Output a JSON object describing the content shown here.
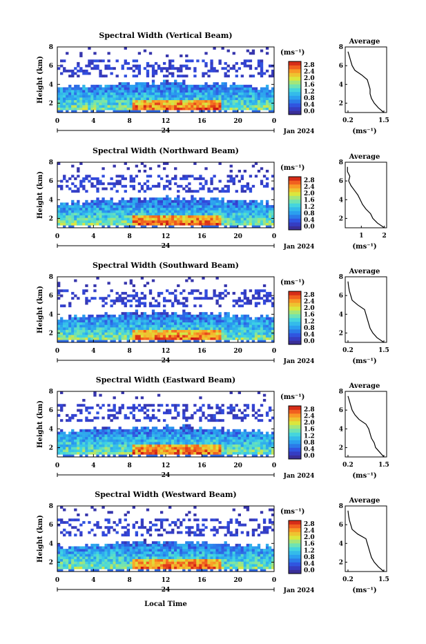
{
  "figure": {
    "x_axis_label": "Local Time",
    "date_label": "Jan 2024",
    "day_label": "24",
    "y_axis_label": "Height (km)",
    "colorbar_unit": "(ms⁻¹)",
    "avg_title": "Average",
    "avg_unit": "(ms⁻¹)"
  },
  "chart_data": [
    {
      "type": "heatmap",
      "title": "Spectral Width (Vertical Beam)",
      "xlabel": "",
      "ylabel": "Height (km)",
      "xlim": [
        0,
        24
      ],
      "ylim": [
        1,
        8
      ],
      "xticks": [
        "0",
        "4",
        "8",
        "12",
        "16",
        "20",
        "0"
      ],
      "yticks": [
        "2",
        "4",
        "6",
        "8"
      ],
      "colorbar": {
        "range": [
          0,
          2.8
        ],
        "ticks": [
          "2.8",
          "2.4",
          "2.0",
          "1.6",
          "1.2",
          "0.8",
          "0.4",
          "0.0"
        ]
      },
      "average_profile": {
        "xticks": [
          "0.2",
          "1.5"
        ],
        "xlim": [
          0.1,
          1.6
        ],
        "yticks": [
          "2",
          "4",
          "6",
          "8"
        ],
        "height": [
          1.0,
          1.5,
          2.0,
          2.5,
          3.0,
          3.5,
          4.0,
          4.5,
          5.0,
          5.5,
          6.0,
          6.5,
          7.0,
          7.5
        ],
        "width": [
          1.5,
          1.3,
          1.15,
          1.05,
          1.0,
          1.0,
          0.95,
          0.9,
          0.7,
          0.45,
          0.35,
          0.3,
          0.25,
          0.2
        ]
      }
    },
    {
      "type": "heatmap",
      "title": "Spectral Width (Northward Beam)",
      "xlabel": "",
      "ylabel": "Height (km)",
      "xlim": [
        0,
        24
      ],
      "ylim": [
        1,
        8
      ],
      "xticks": [
        "0",
        "4",
        "8",
        "12",
        "16",
        "20",
        "0"
      ],
      "yticks": [
        "2",
        "4",
        "6",
        "8"
      ],
      "colorbar": {
        "range": [
          0,
          2.8
        ],
        "ticks": [
          "2.8",
          "2.4",
          "2.0",
          "1.6",
          "1.2",
          "0.8",
          "0.4",
          "0.0"
        ]
      },
      "average_profile": {
        "xticks": [
          "1",
          "2"
        ],
        "xlim": [
          0.3,
          2.1
        ],
        "yticks": [
          "2",
          "4",
          "6",
          "8"
        ],
        "height": [
          1.0,
          1.5,
          2.0,
          2.5,
          3.0,
          3.5,
          4.0,
          4.5,
          5.0,
          5.5,
          6.0,
          6.5,
          7.0,
          7.5
        ],
        "width": [
          2.0,
          1.7,
          1.5,
          1.4,
          1.2,
          1.05,
          0.95,
          0.85,
          0.7,
          0.55,
          0.45,
          0.5,
          0.4,
          0.4
        ]
      }
    },
    {
      "type": "heatmap",
      "title": "Spectral Width (Southward Beam)",
      "xlabel": "",
      "ylabel": "Height (km)",
      "xlim": [
        0,
        24
      ],
      "ylim": [
        1,
        8
      ],
      "xticks": [
        "0",
        "4",
        "8",
        "12",
        "16",
        "20",
        "0"
      ],
      "yticks": [
        "2",
        "4",
        "6",
        "8"
      ],
      "colorbar": {
        "range": [
          0,
          2.8
        ],
        "ticks": [
          "2.8",
          "2.4",
          "2.0",
          "1.6",
          "1.2",
          "0.8",
          "0.4",
          "0.0"
        ]
      },
      "average_profile": {
        "xticks": [
          "0.2",
          "1.5"
        ],
        "xlim": [
          0.1,
          1.6
        ],
        "yticks": [
          "2",
          "4",
          "6",
          "8"
        ],
        "height": [
          1.0,
          1.5,
          2.0,
          2.5,
          3.0,
          3.5,
          4.0,
          4.5,
          5.0,
          5.5,
          6.0,
          6.5,
          7.0,
          7.5
        ],
        "width": [
          1.5,
          1.25,
          1.1,
          1.0,
          0.95,
          0.9,
          0.85,
          0.8,
          0.55,
          0.35,
          0.3,
          0.25,
          0.22,
          0.2
        ]
      }
    },
    {
      "type": "heatmap",
      "title": "Spectral Width (Eastward Beam)",
      "xlabel": "",
      "ylabel": "Height (km)",
      "xlim": [
        0,
        24
      ],
      "ylim": [
        1,
        8
      ],
      "xticks": [
        "0",
        "4",
        "8",
        "12",
        "16",
        "20",
        "0"
      ],
      "yticks": [
        "2",
        "4",
        "6",
        "8"
      ],
      "colorbar": {
        "range": [
          0,
          2.8
        ],
        "ticks": [
          "2.8",
          "2.4",
          "2.0",
          "1.6",
          "1.2",
          "0.8",
          "0.4",
          "0.0"
        ]
      },
      "average_profile": {
        "xticks": [
          "0.2",
          "1.5"
        ],
        "xlim": [
          0.1,
          1.6
        ],
        "yticks": [
          "2",
          "4",
          "6",
          "8"
        ],
        "height": [
          1.0,
          1.5,
          2.0,
          2.5,
          3.0,
          3.5,
          4.0,
          4.5,
          5.0,
          5.5,
          6.0,
          6.5,
          7.0,
          7.5
        ],
        "width": [
          1.5,
          1.35,
          1.2,
          1.15,
          1.05,
          1.0,
          0.95,
          0.85,
          0.6,
          0.45,
          0.35,
          0.3,
          0.25,
          0.2
        ]
      }
    },
    {
      "type": "heatmap",
      "title": "Spectral Width (Westward Beam)",
      "xlabel": "Local Time",
      "ylabel": "Height (km)",
      "xlim": [
        0,
        24
      ],
      "ylim": [
        1,
        8
      ],
      "xticks": [
        "0",
        "4",
        "8",
        "12",
        "16",
        "20",
        "0"
      ],
      "yticks": [
        "2",
        "4",
        "6",
        "8"
      ],
      "colorbar": {
        "range": [
          0,
          2.8
        ],
        "ticks": [
          "2.8",
          "2.4",
          "2.0",
          "1.6",
          "1.2",
          "0.8",
          "0.4",
          "0.0"
        ]
      },
      "average_profile": {
        "xticks": [
          "0.2",
          "1.5"
        ],
        "xlim": [
          0.1,
          1.6
        ],
        "yticks": [
          "2",
          "4",
          "6",
          "8"
        ],
        "height": [
          1.0,
          1.5,
          2.0,
          2.5,
          3.0,
          3.5,
          4.0,
          4.5,
          5.0,
          5.5,
          6.0,
          6.5,
          7.0,
          7.5
        ],
        "width": [
          1.5,
          1.3,
          1.15,
          1.05,
          1.0,
          0.95,
          0.9,
          0.85,
          0.55,
          0.35,
          0.3,
          0.25,
          0.22,
          0.2
        ]
      }
    }
  ]
}
